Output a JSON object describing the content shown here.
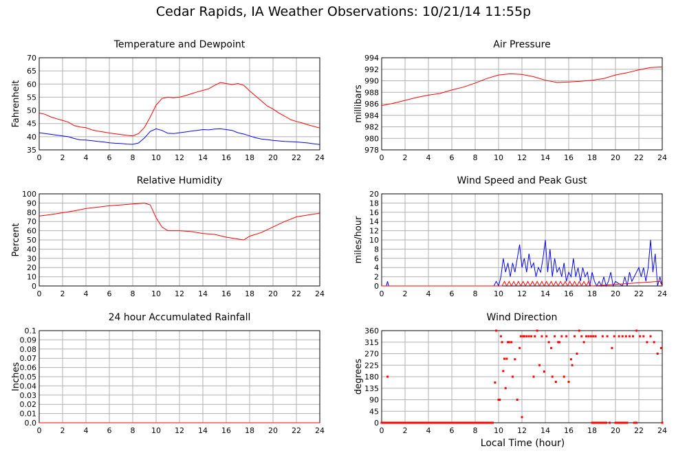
{
  "page": {
    "title": "Cedar Rapids, IA Weather Observations: 10/21/14 11:55p",
    "xlabel": "Local Time (hour)"
  },
  "colors": {
    "primary": "#ff0000",
    "secondary": "#0000ff",
    "grid": "#b0b0b0"
  },
  "chart_data": [
    {
      "id": "temp",
      "type": "line",
      "title": "Temperature and Dewpoint",
      "ylabel": "Fahrenheit",
      "xlim": [
        0,
        24
      ],
      "ylim": [
        35,
        70
      ],
      "xticks": [
        0,
        2,
        4,
        6,
        8,
        10,
        12,
        14,
        16,
        18,
        20,
        22,
        24
      ],
      "yticks": [
        35,
        40,
        45,
        50,
        55,
        60,
        65,
        70
      ],
      "grid": true,
      "series": [
        {
          "color": "#ff0000",
          "x": [
            0,
            0.5,
            1,
            1.5,
            2,
            2.5,
            3,
            3.5,
            4,
            4.5,
            5,
            5.5,
            6,
            6.5,
            7,
            7.5,
            8,
            8.5,
            9,
            9.5,
            10,
            10.5,
            11,
            11.5,
            12,
            12.5,
            13,
            13.5,
            14,
            14.5,
            15,
            15.5,
            16,
            16.5,
            17,
            17.5,
            18,
            18.5,
            19,
            19.5,
            20,
            20.5,
            21,
            21.5,
            22,
            22.5,
            23,
            23.5,
            24
          ],
          "y": [
            49,
            48.5,
            47.5,
            46.8,
            46.2,
            45.5,
            44.2,
            43.7,
            43.4,
            42.6,
            42.1,
            41.8,
            41.4,
            41.1,
            40.8,
            40.5,
            40.3,
            41.2,
            43.5,
            47.5,
            52,
            54.5,
            55,
            54.8,
            55,
            55.6,
            56.3,
            57,
            57.6,
            58.2,
            59.5,
            60.6,
            60.2,
            59.8,
            60.2,
            59.5,
            57.4,
            55.5,
            53.6,
            51.7,
            50.5,
            49,
            47.8,
            46.5,
            45.8,
            45.2,
            44.5,
            43.9,
            43.3
          ]
        },
        {
          "color": "#0000ff",
          "x": [
            0,
            0.5,
            1,
            1.5,
            2,
            2.5,
            3,
            3.5,
            4,
            4.5,
            5,
            5.5,
            6,
            6.5,
            7,
            7.5,
            8,
            8.5,
            9,
            9.5,
            10,
            10.5,
            11,
            11.5,
            12,
            12.5,
            13,
            13.5,
            14,
            14.5,
            15,
            15.5,
            16,
            16.5,
            17,
            17.5,
            18,
            18.5,
            19,
            19.5,
            20,
            20.5,
            21,
            21.5,
            22,
            22.5,
            23,
            23.5,
            24
          ],
          "y": [
            41.5,
            41.2,
            40.9,
            40.6,
            40.3,
            40.0,
            39.3,
            38.8,
            38.7,
            38.5,
            38.2,
            38.0,
            37.7,
            37.5,
            37.4,
            37.2,
            37.1,
            37.6,
            39.5,
            42,
            43,
            42.4,
            41.3,
            41.2,
            41.5,
            41.8,
            42.1,
            42.4,
            42.7,
            42.6,
            42.9,
            43,
            42.7,
            42.4,
            41.5,
            41,
            40.3,
            39.6,
            39.1,
            38.9,
            38.6,
            38.4,
            38.2,
            38.1,
            38.0,
            37.8,
            37.6,
            37.3,
            37.0
          ]
        }
      ]
    },
    {
      "id": "pressure",
      "type": "line",
      "title": "Air Pressure",
      "ylabel": "millibars",
      "xlim": [
        0,
        24
      ],
      "ylim": [
        978,
        994
      ],
      "xticks": [
        0,
        2,
        4,
        6,
        8,
        10,
        12,
        14,
        16,
        18,
        20,
        22,
        24
      ],
      "yticks": [
        978,
        980,
        982,
        984,
        986,
        988,
        990,
        992,
        994
      ],
      "grid": true,
      "series": [
        {
          "color": "#ff0000",
          "x": [
            0,
            1,
            2,
            3,
            4,
            5,
            6,
            7,
            8,
            9,
            10,
            11,
            12,
            13,
            14,
            15,
            16,
            17,
            18,
            19,
            20,
            21,
            22,
            23,
            24
          ],
          "y": [
            985.7,
            986.1,
            986.6,
            987.1,
            987.5,
            987.8,
            988.4,
            988.9,
            989.6,
            990.4,
            991.0,
            991.2,
            991.1,
            990.7,
            990.1,
            989.7,
            989.8,
            989.9,
            990.1,
            990.4,
            991.0,
            991.4,
            991.9,
            992.3,
            992.4
          ]
        }
      ]
    },
    {
      "id": "humidity",
      "type": "line",
      "title": "Relative Humidity",
      "ylabel": "Percent",
      "xlim": [
        0,
        24
      ],
      "ylim": [
        0,
        100
      ],
      "xticks": [
        0,
        2,
        4,
        6,
        8,
        10,
        12,
        14,
        16,
        18,
        20,
        22,
        24
      ],
      "yticks": [
        0,
        10,
        20,
        30,
        40,
        50,
        60,
        70,
        80,
        90,
        100
      ],
      "grid": true,
      "series": [
        {
          "color": "#ff0000",
          "x": [
            0,
            1,
            2,
            3,
            4,
            5,
            6,
            7,
            8,
            8.5,
            9,
            9.5,
            10,
            10.5,
            11,
            12,
            13,
            14,
            15,
            16,
            17,
            17.5,
            18,
            19,
            20,
            21,
            22,
            23,
            24
          ],
          "y": [
            76,
            77.5,
            79.5,
            81.5,
            84,
            85.5,
            87,
            88,
            89,
            89.5,
            90,
            88,
            74,
            64,
            60,
            60,
            59,
            57,
            56,
            53,
            51,
            50,
            54,
            58,
            64,
            70,
            75,
            77,
            79
          ]
        }
      ]
    },
    {
      "id": "wind",
      "type": "line",
      "title": "Wind Speed and Peak Gust",
      "ylabel": "miles/hour",
      "xlim": [
        0,
        24
      ],
      "ylim": [
        0,
        20
      ],
      "xticks": [
        0,
        2,
        4,
        6,
        8,
        10,
        12,
        14,
        16,
        18,
        20,
        22,
        24
      ],
      "yticks": [
        0,
        2,
        4,
        6,
        8,
        10,
        12,
        14,
        16,
        18,
        20
      ],
      "grid": true,
      "series": [
        {
          "color": "#0000ff",
          "x": [
            0,
            0.4,
            0.5,
            0.6,
            9.6,
            9.8,
            10,
            10.2,
            10.4,
            10.6,
            10.8,
            11,
            11.2,
            11.4,
            11.6,
            11.8,
            12,
            12.2,
            12.4,
            12.6,
            12.8,
            13,
            13.2,
            13.4,
            13.6,
            13.8,
            14,
            14.2,
            14.4,
            14.6,
            14.8,
            15,
            15.2,
            15.4,
            15.6,
            15.8,
            16,
            16.2,
            16.4,
            16.6,
            16.8,
            17,
            17.2,
            17.4,
            17.6,
            17.8,
            18,
            18.2,
            18.4,
            18.6,
            18.8,
            19,
            19.2,
            19.4,
            19.6,
            19.8,
            20,
            20.6,
            20.8,
            21,
            21.2,
            21.4,
            21.6,
            21.8,
            22,
            22.2,
            22.4,
            22.6,
            22.8,
            23,
            23.2,
            23.4,
            23.6,
            23.8,
            24
          ],
          "y": [
            0,
            0,
            1,
            0,
            0,
            1,
            0,
            2,
            6,
            3,
            5,
            2,
            5,
            3,
            6,
            9,
            4,
            6,
            3,
            7,
            4,
            5,
            2,
            4,
            3,
            6,
            10,
            3,
            8,
            2,
            6,
            3,
            4,
            2,
            5,
            1,
            3,
            2,
            6,
            2,
            4,
            1,
            4,
            2,
            3,
            0,
            3,
            1,
            0,
            1,
            0,
            2,
            0,
            1,
            3,
            0,
            1,
            0,
            2,
            0,
            3,
            1,
            2,
            3,
            4,
            2,
            4,
            1,
            4,
            10,
            3,
            7,
            0,
            2,
            0
          ],
          "label_note": ""
        },
        {
          "color": "#ff0000",
          "x": [
            0,
            10.3,
            10.5,
            10.7,
            10.9,
            11.1,
            11.3,
            11.5,
            11.7,
            11.9,
            12.1,
            12.3,
            12.5,
            12.7,
            12.9,
            13.1,
            13.3,
            13.5,
            13.7,
            13.9,
            14.1,
            14.3,
            14.5,
            14.7,
            14.9,
            15.1,
            15.3,
            15.5,
            15.7,
            15.9,
            16.1,
            16.3,
            16.5,
            16.7,
            16.9,
            17.1,
            17.3,
            17.5,
            17.7,
            17.9,
            18.1,
            23.8,
            24
          ],
          "y": [
            0,
            0,
            1,
            0,
            1,
            0,
            1,
            0,
            1,
            0,
            1,
            0,
            1,
            0,
            1,
            0,
            1,
            0,
            1,
            0,
            1,
            0,
            1,
            0,
            1,
            0,
            1,
            0,
            1,
            0,
            1,
            0,
            1,
            0,
            1,
            0,
            1,
            0,
            1,
            0,
            0,
            1,
            0
          ]
        }
      ]
    },
    {
      "id": "rain",
      "type": "line",
      "title": "24 hour Accumulated Rainfall",
      "ylabel": "Inches",
      "xlim": [
        0,
        24
      ],
      "ylim": [
        0,
        0.1
      ],
      "xticks": [
        0,
        2,
        4,
        6,
        8,
        10,
        12,
        14,
        16,
        18,
        20,
        22,
        24
      ],
      "yticks": [
        "0.0",
        "0.01",
        "0.02",
        "0.03",
        "0.04",
        "0.05",
        "0.06",
        "0.07",
        "0.08",
        "0.09",
        "0.1"
      ],
      "grid": true,
      "series": [
        {
          "color": "#ff0000",
          "x": [
            0,
            24
          ],
          "y": [
            0,
            0
          ]
        }
      ]
    },
    {
      "id": "direction",
      "type": "scatter",
      "title": "Wind Direction",
      "ylabel": "degrees",
      "xlim": [
        0,
        24
      ],
      "ylim": [
        0,
        360
      ],
      "xticks": [
        0,
        2,
        4,
        6,
        8,
        10,
        12,
        14,
        16,
        18,
        20,
        22,
        24
      ],
      "yticks": [
        0,
        45,
        90,
        135,
        180,
        225,
        270,
        315,
        360
      ],
      "grid": true,
      "series": [
        {
          "color": "#ff0000",
          "x": [
            0.5,
            9.7,
            9.8,
            10,
            10.1,
            10.2,
            10.3,
            10.4,
            10.5,
            10.6,
            10.7,
            10.8,
            10.9,
            11.1,
            11.2,
            11.4,
            11.6,
            11.8,
            11.9,
            12,
            12.1,
            12.2,
            12.4,
            12.6,
            12.8,
            13,
            13.1,
            13.3,
            13.5,
            13.7,
            13.9,
            14.1,
            14.3,
            14.5,
            14.6,
            14.8,
            14.9,
            15.1,
            15.2,
            15.4,
            15.6,
            15.8,
            16,
            16.2,
            16.3,
            16.5,
            16.7,
            16.9,
            17.1,
            17.3,
            17.5,
            17.7,
            17.9,
            18.1,
            18.3,
            18.7,
            18.9,
            19.1,
            19.3,
            19.5,
            19.7,
            19.9,
            20.3,
            20.6,
            20.9,
            21.2,
            21.5,
            21.8,
            22.1,
            22.4,
            22.7,
            23,
            23.3,
            23.6,
            23.9
          ],
          "y": [
            180,
            157,
            360,
            90,
            90,
            338,
            315,
            202,
            250,
            135,
            250,
            315,
            315,
            315,
            180,
            248,
            90,
            292,
            338,
            22,
            338,
            338,
            338,
            338,
            338,
            180,
            338,
            360,
            225,
            338,
            200,
            338,
            315,
            292,
            180,
            338,
            160,
            315,
            315,
            338,
            180,
            338,
            160,
            248,
            225,
            338,
            270,
            360,
            338,
            315,
            338,
            338,
            338,
            338,
            338,
            0,
            338,
            0,
            338,
            0,
            292,
            338,
            338,
            338,
            338,
            338,
            338,
            360,
            338,
            338,
            315,
            338,
            315,
            270,
            292
          ]
        },
        {
          "color": "#ff0000",
          "x": [
            0,
            0.5,
            1,
            1.5,
            2,
            2.5,
            3,
            3.5,
            4,
            4.5,
            5,
            5.5,
            6,
            6.5,
            7,
            7.5,
            8,
            8.5,
            9,
            9.5,
            18,
            18.2,
            18.4,
            18.6,
            18.8,
            19,
            19.2,
            20,
            20.2,
            20.4,
            20.6,
            20.8,
            21,
            21.6,
            21.8,
            24
          ],
          "y": [
            0,
            0,
            0,
            0,
            0,
            0,
            0,
            0,
            0,
            0,
            0,
            0,
            0,
            0,
            0,
            0,
            0,
            0,
            0,
            0,
            0,
            0,
            0,
            0,
            0,
            0,
            0,
            0,
            0,
            0,
            0,
            0,
            0,
            0,
            0,
            0
          ]
        }
      ]
    }
  ]
}
